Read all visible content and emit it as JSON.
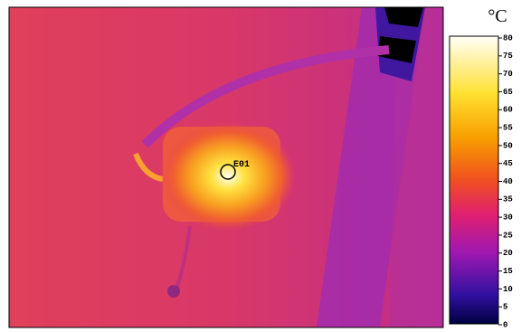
{
  "image": {
    "marker": {
      "label": "E01"
    }
  },
  "colorbar": {
    "unit": "°C",
    "ticks": [
      0,
      5,
      10,
      15,
      20,
      25,
      30,
      35,
      40,
      45,
      50,
      55,
      60,
      65,
      70,
      75,
      80
    ]
  }
}
